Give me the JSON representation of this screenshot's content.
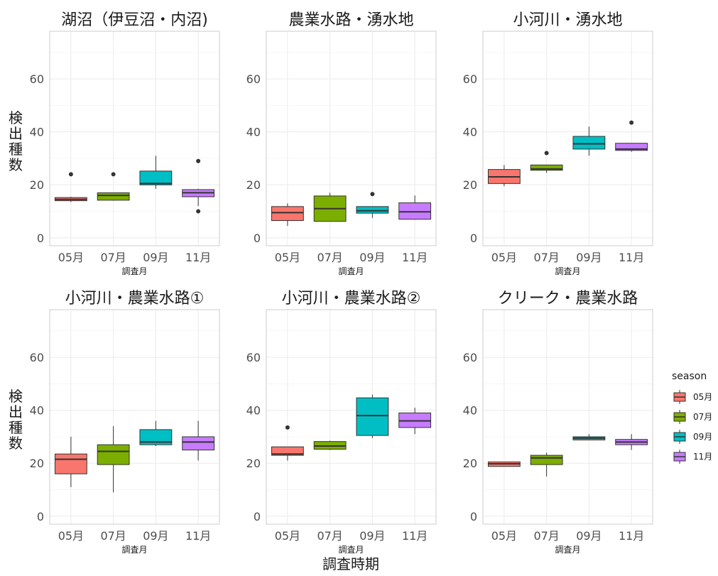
{
  "figure": {
    "xlabel": "調査時期",
    "ylabel": "検出種数",
    "legend": {
      "title": "season",
      "position": "right",
      "entries": [
        {
          "label": "05月",
          "color": "#F8766D"
        },
        {
          "label": "07月",
          "color": "#7CAE00"
        },
        {
          "label": "09月",
          "color": "#00BFC4"
        },
        {
          "label": "11月",
          "color": "#C77CFF"
        }
      ]
    }
  },
  "chart_data": [
    {
      "type": "boxplot",
      "title": "湖沼（伊豆沼・内沼)",
      "xlabel": "調査月",
      "categories": [
        "05月",
        "07月",
        "09月",
        "11月"
      ],
      "ylim": [
        -3,
        78
      ],
      "yticks": [
        0,
        20,
        40,
        60
      ],
      "grid": true,
      "boxes": [
        {
          "whisker_low": 13.5,
          "q1": 14.0,
          "median": 14.5,
          "q3": 15.2,
          "whisker_high": 15.5,
          "outliers": [
            24
          ]
        },
        {
          "whisker_low": 14.0,
          "q1": 14.2,
          "median": 16.0,
          "q3": 17.0,
          "whisker_high": 17.0,
          "outliers": [
            24
          ]
        },
        {
          "whisker_low": 18.5,
          "q1": 20.0,
          "median": 20.5,
          "q3": 25.2,
          "whisker_high": 31.0,
          "outliers": []
        },
        {
          "whisker_low": 12.0,
          "q1": 15.5,
          "median": 17.0,
          "q3": 18.2,
          "whisker_high": 18.5,
          "outliers": [
            29,
            10
          ]
        }
      ]
    },
    {
      "type": "boxplot",
      "title": "農業水路・湧水地",
      "xlabel": "調査月",
      "categories": [
        "05月",
        "07月",
        "09月",
        "11月"
      ],
      "ylim": [
        -3,
        78
      ],
      "yticks": [
        0,
        20,
        40,
        60
      ],
      "grid": true,
      "boxes": [
        {
          "whisker_low": 4.5,
          "q1": 6.5,
          "median": 9.5,
          "q3": 11.8,
          "whisker_high": 13.0,
          "outliers": []
        },
        {
          "whisker_low": 6.2,
          "q1": 6.2,
          "median": 11.0,
          "q3": 15.8,
          "whisker_high": 17.0,
          "outliers": []
        },
        {
          "whisker_low": 7.5,
          "q1": 9.3,
          "median": 10.2,
          "q3": 11.8,
          "whisker_high": 11.8,
          "outliers": [
            16.5
          ]
        },
        {
          "whisker_low": 6.8,
          "q1": 7.0,
          "median": 9.8,
          "q3": 13.2,
          "whisker_high": 16.0,
          "outliers": []
        }
      ]
    },
    {
      "type": "boxplot",
      "title": "小河川・湧水地",
      "xlabel": "調査月",
      "categories": [
        "05月",
        "07月",
        "09月",
        "11月"
      ],
      "ylim": [
        -3,
        78
      ],
      "yticks": [
        0,
        20,
        40,
        60
      ],
      "grid": true,
      "boxes": [
        {
          "whisker_low": 19.5,
          "q1": 20.5,
          "median": 23.0,
          "q3": 25.8,
          "whisker_high": 27.5,
          "outliers": []
        },
        {
          "whisker_low": 24.5,
          "q1": 25.5,
          "median": 26.0,
          "q3": 27.5,
          "whisker_high": 27.5,
          "outliers": [
            32
          ]
        },
        {
          "whisker_low": 31.0,
          "q1": 33.5,
          "median": 35.5,
          "q3": 38.3,
          "whisker_high": 42.0,
          "outliers": []
        },
        {
          "whisker_low": 32.5,
          "q1": 33.0,
          "median": 33.5,
          "q3": 35.7,
          "whisker_high": 35.7,
          "outliers": [
            43.5
          ]
        }
      ]
    },
    {
      "type": "boxplot",
      "title": "小河川・農業水路①",
      "xlabel": "調査月",
      "categories": [
        "05月",
        "07月",
        "09月",
        "11月"
      ],
      "ylim": [
        -3,
        78
      ],
      "yticks": [
        0,
        20,
        40,
        60
      ],
      "grid": true,
      "boxes": [
        {
          "whisker_low": 11.0,
          "q1": 16.0,
          "median": 21.5,
          "q3": 23.5,
          "whisker_high": 30.0,
          "outliers": []
        },
        {
          "whisker_low": 9.0,
          "q1": 19.5,
          "median": 24.5,
          "q3": 27.0,
          "whisker_high": 34.0,
          "outliers": []
        },
        {
          "whisker_low": 26.5,
          "q1": 27.0,
          "median": 28.0,
          "q3": 32.7,
          "whisker_high": 36.0,
          "outliers": []
        },
        {
          "whisker_low": 21.0,
          "q1": 25.0,
          "median": 28.0,
          "q3": 30.0,
          "whisker_high": 36.0,
          "outliers": []
        }
      ]
    },
    {
      "type": "boxplot",
      "title": "小河川・農業水路②",
      "xlabel": "調査月",
      "categories": [
        "05月",
        "07月",
        "09月",
        "11月"
      ],
      "ylim": [
        -3,
        78
      ],
      "yticks": [
        0,
        20,
        40,
        60
      ],
      "grid": true,
      "boxes": [
        {
          "whisker_low": 21.0,
          "q1": 23.0,
          "median": 23.5,
          "q3": 26.2,
          "whisker_high": 26.2,
          "outliers": [
            33.5
          ]
        },
        {
          "whisker_low": 25.0,
          "q1": 25.3,
          "median": 26.5,
          "q3": 28.2,
          "whisker_high": 28.5,
          "outliers": []
        },
        {
          "whisker_low": 29.5,
          "q1": 30.5,
          "median": 38.0,
          "q3": 44.7,
          "whisker_high": 46.0,
          "outliers": []
        },
        {
          "whisker_low": 31.0,
          "q1": 33.5,
          "median": 36.0,
          "q3": 39.0,
          "whisker_high": 41.0,
          "outliers": []
        }
      ]
    },
    {
      "type": "boxplot",
      "title": "クリーク・農業水路",
      "xlabel": "調査月",
      "categories": [
        "05月",
        "07月",
        "09月",
        "11月"
      ],
      "ylim": [
        -3,
        78
      ],
      "yticks": [
        0,
        20,
        40,
        60
      ],
      "grid": true,
      "boxes": [
        {
          "whisker_low": 18.8,
          "q1": 18.8,
          "median": 19.8,
          "q3": 20.5,
          "whisker_high": 20.5,
          "outliers": []
        },
        {
          "whisker_low": 15.0,
          "q1": 19.5,
          "median": 22.0,
          "q3": 23.0,
          "whisker_high": 24.0,
          "outliers": []
        },
        {
          "whisker_low": 28.8,
          "q1": 28.8,
          "median": 29.5,
          "q3": 30.0,
          "whisker_high": 31.0,
          "outliers": []
        },
        {
          "whisker_low": 25.0,
          "q1": 27.0,
          "median": 28.0,
          "q3": 29.0,
          "whisker_high": 31.0,
          "outliers": []
        }
      ]
    }
  ]
}
